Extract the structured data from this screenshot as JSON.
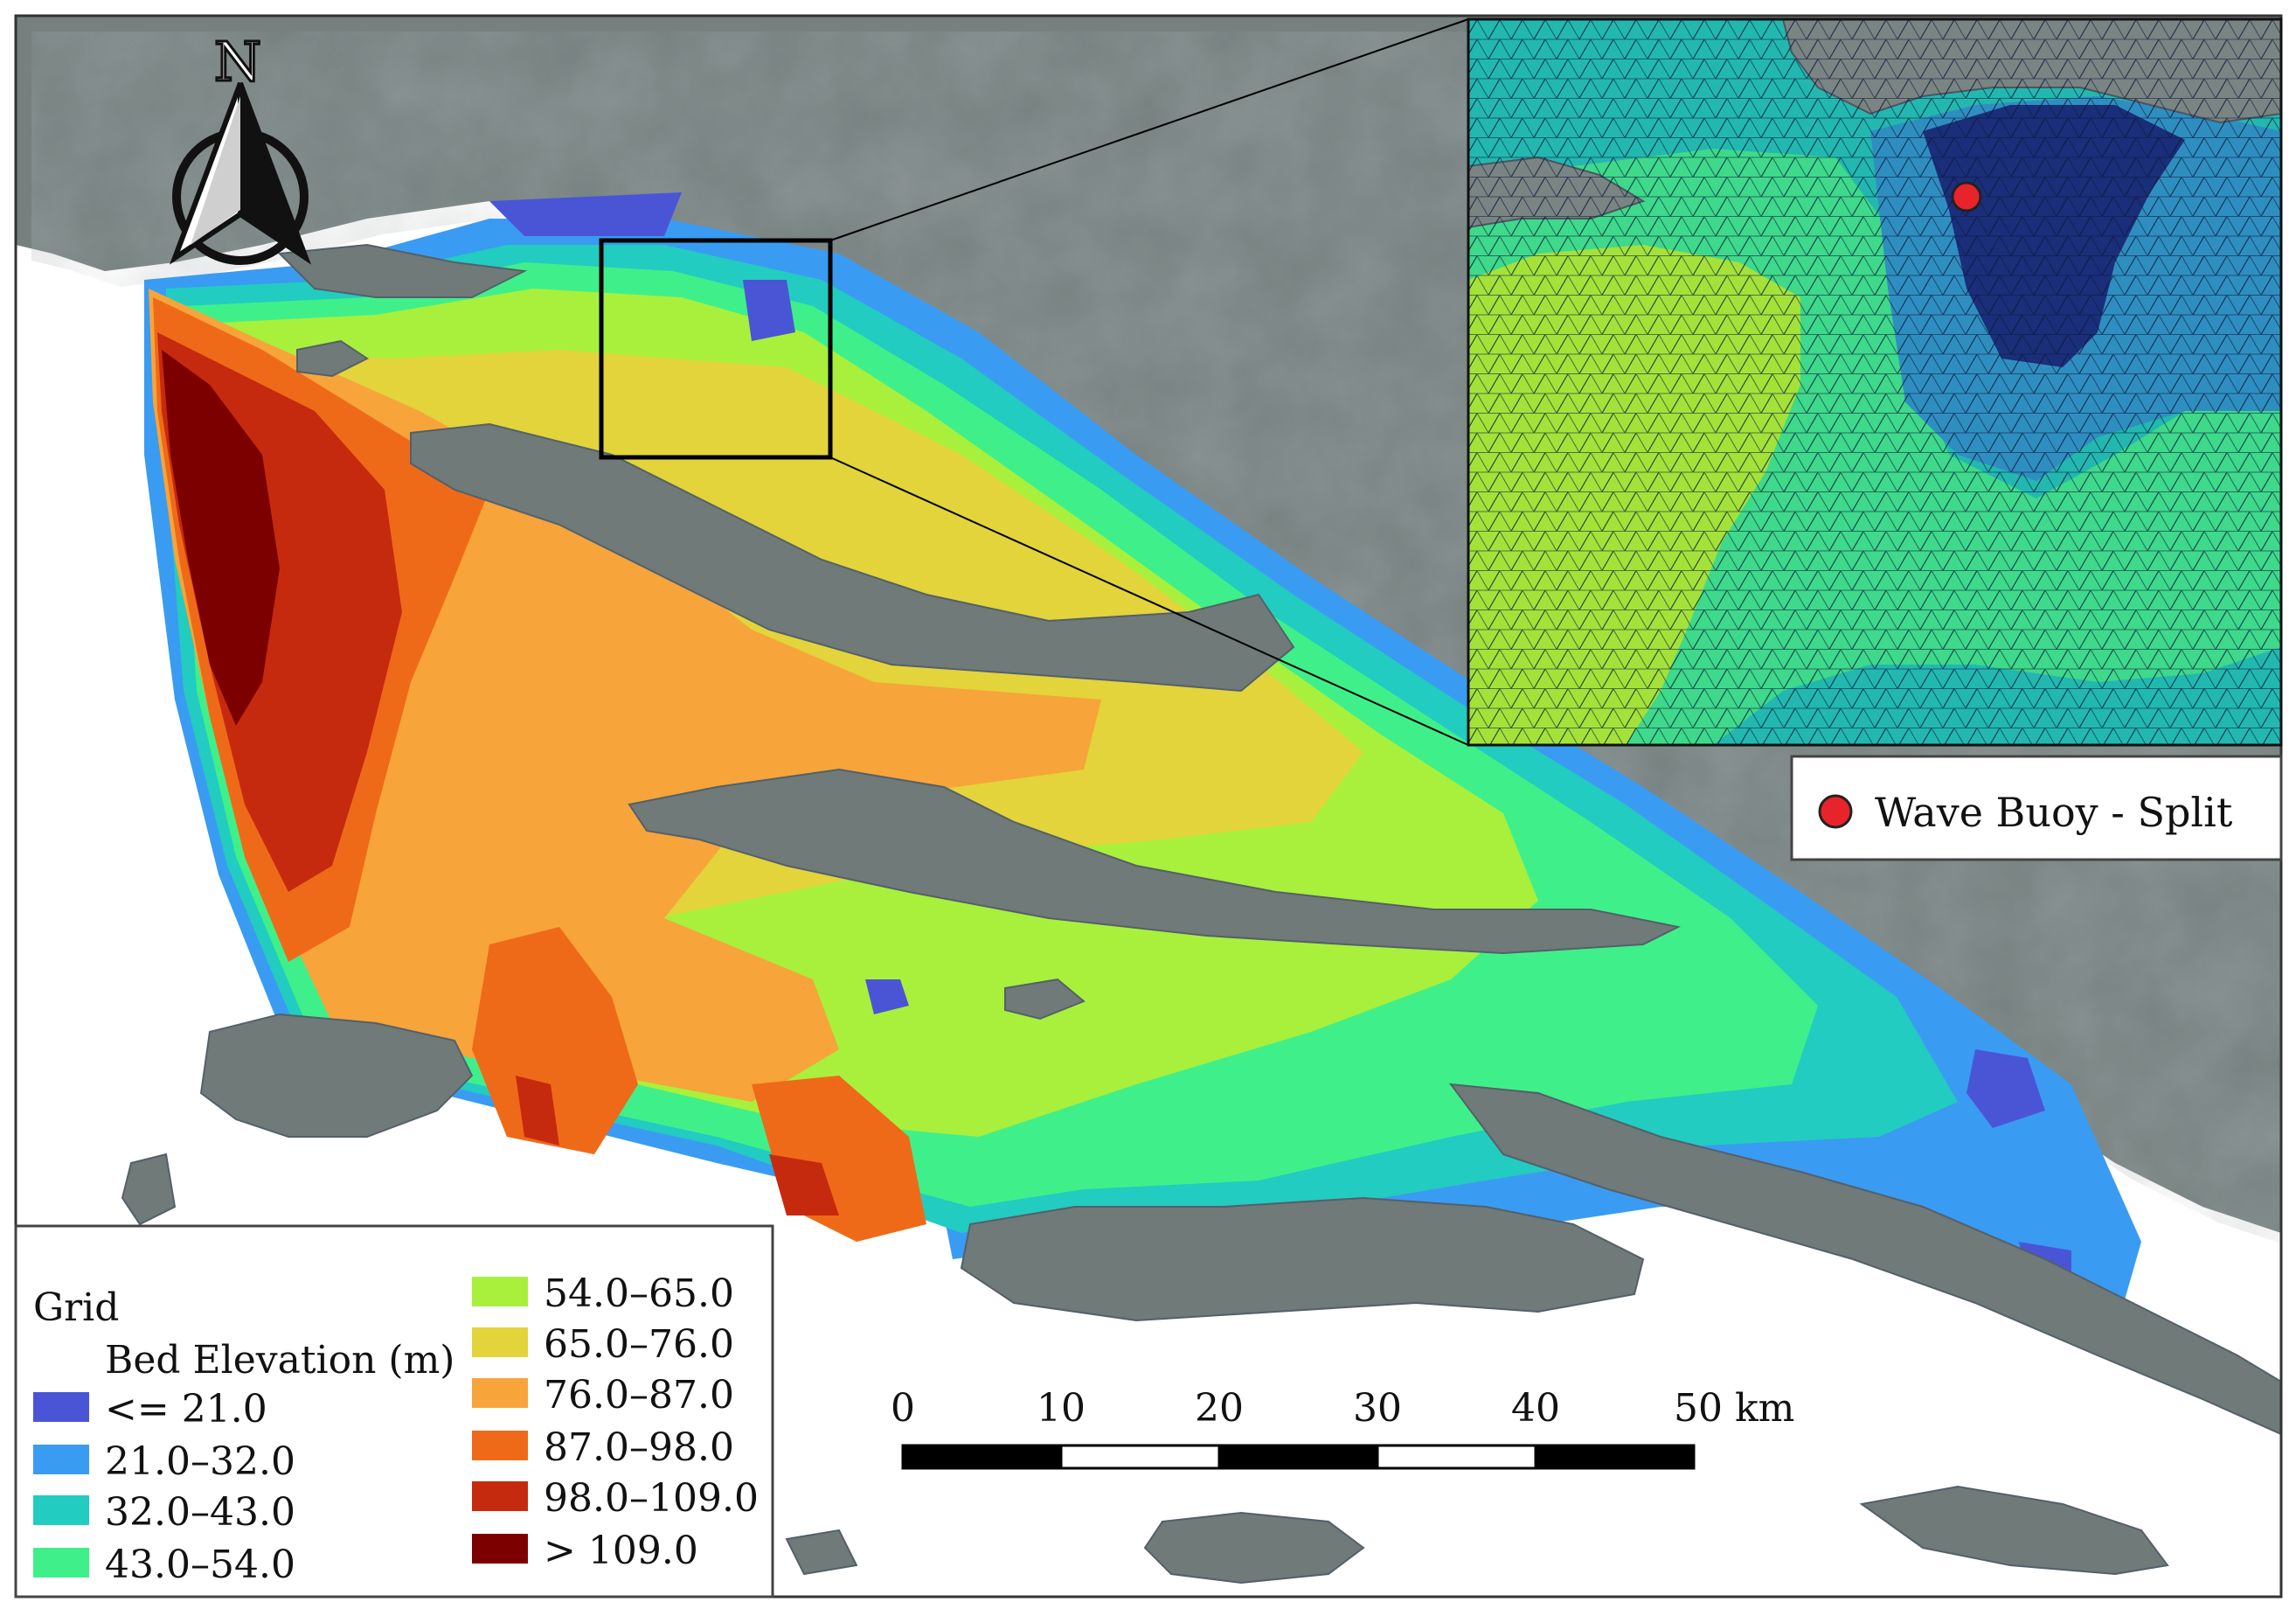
{
  "map": {
    "north_label": "N",
    "legend": {
      "title": "Grid",
      "subtitle": "Bed Elevation (m)",
      "classes": [
        {
          "label": "<= 21.0",
          "color": "#4a55d6"
        },
        {
          "label": "21.0–32.0",
          "color": "#3a9bf2"
        },
        {
          "label": "32.0–43.0",
          "color": "#22ccc0"
        },
        {
          "label": "43.0–54.0",
          "color": "#3ff08a"
        },
        {
          "label": "54.0–65.0",
          "color": "#a8f03c"
        },
        {
          "label": "65.0–76.0",
          "color": "#e2d43a"
        },
        {
          "label": "76.0–87.0",
          "color": "#f7a43a"
        },
        {
          "label": "87.0–98.0",
          "color": "#ef6a18"
        },
        {
          "label": "98.0–109.0",
          "color": "#c62a0e"
        },
        {
          "label": ">  109.0",
          "color": "#7d0000"
        }
      ]
    },
    "scalebar": {
      "ticks": [
        "0",
        "10",
        "20",
        "30",
        "40",
        "50 km"
      ]
    },
    "buoy_legend": {
      "label": "Wave Buoy - Split",
      "color": "#e8232b"
    }
  }
}
